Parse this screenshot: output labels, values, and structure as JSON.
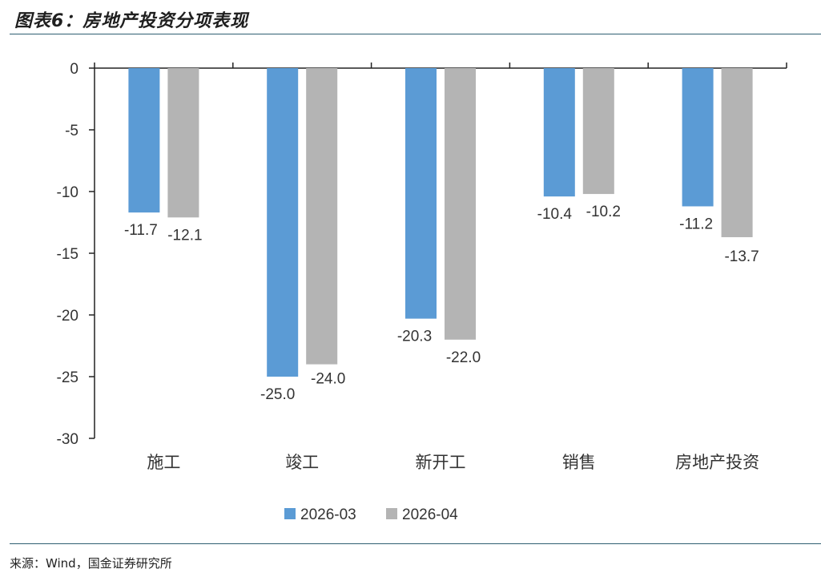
{
  "header": {
    "title": "图表6：房地产投资分项表现"
  },
  "footer": {
    "source": "来源：Wind，国金证券研究所"
  },
  "chart_data": {
    "type": "bar",
    "categories": [
      "施工",
      "竣工",
      "新开工",
      "销售",
      "房地产投资"
    ],
    "series": [
      {
        "name": "2026-03",
        "color": "#5b9bd5",
        "values": [
          -11.7,
          -25.0,
          -20.3,
          -10.4,
          -11.2
        ]
      },
      {
        "name": "2026-04",
        "color": "#b4b4b4",
        "values": [
          -12.1,
          -24.0,
          -22.0,
          -10.2,
          -13.7
        ]
      }
    ],
    "yticks": [
      "0",
      "-5",
      "-10",
      "-15",
      "-20",
      "-25",
      "-30"
    ],
    "ylim": [
      -30,
      0
    ],
    "legend_position": "bottom"
  }
}
